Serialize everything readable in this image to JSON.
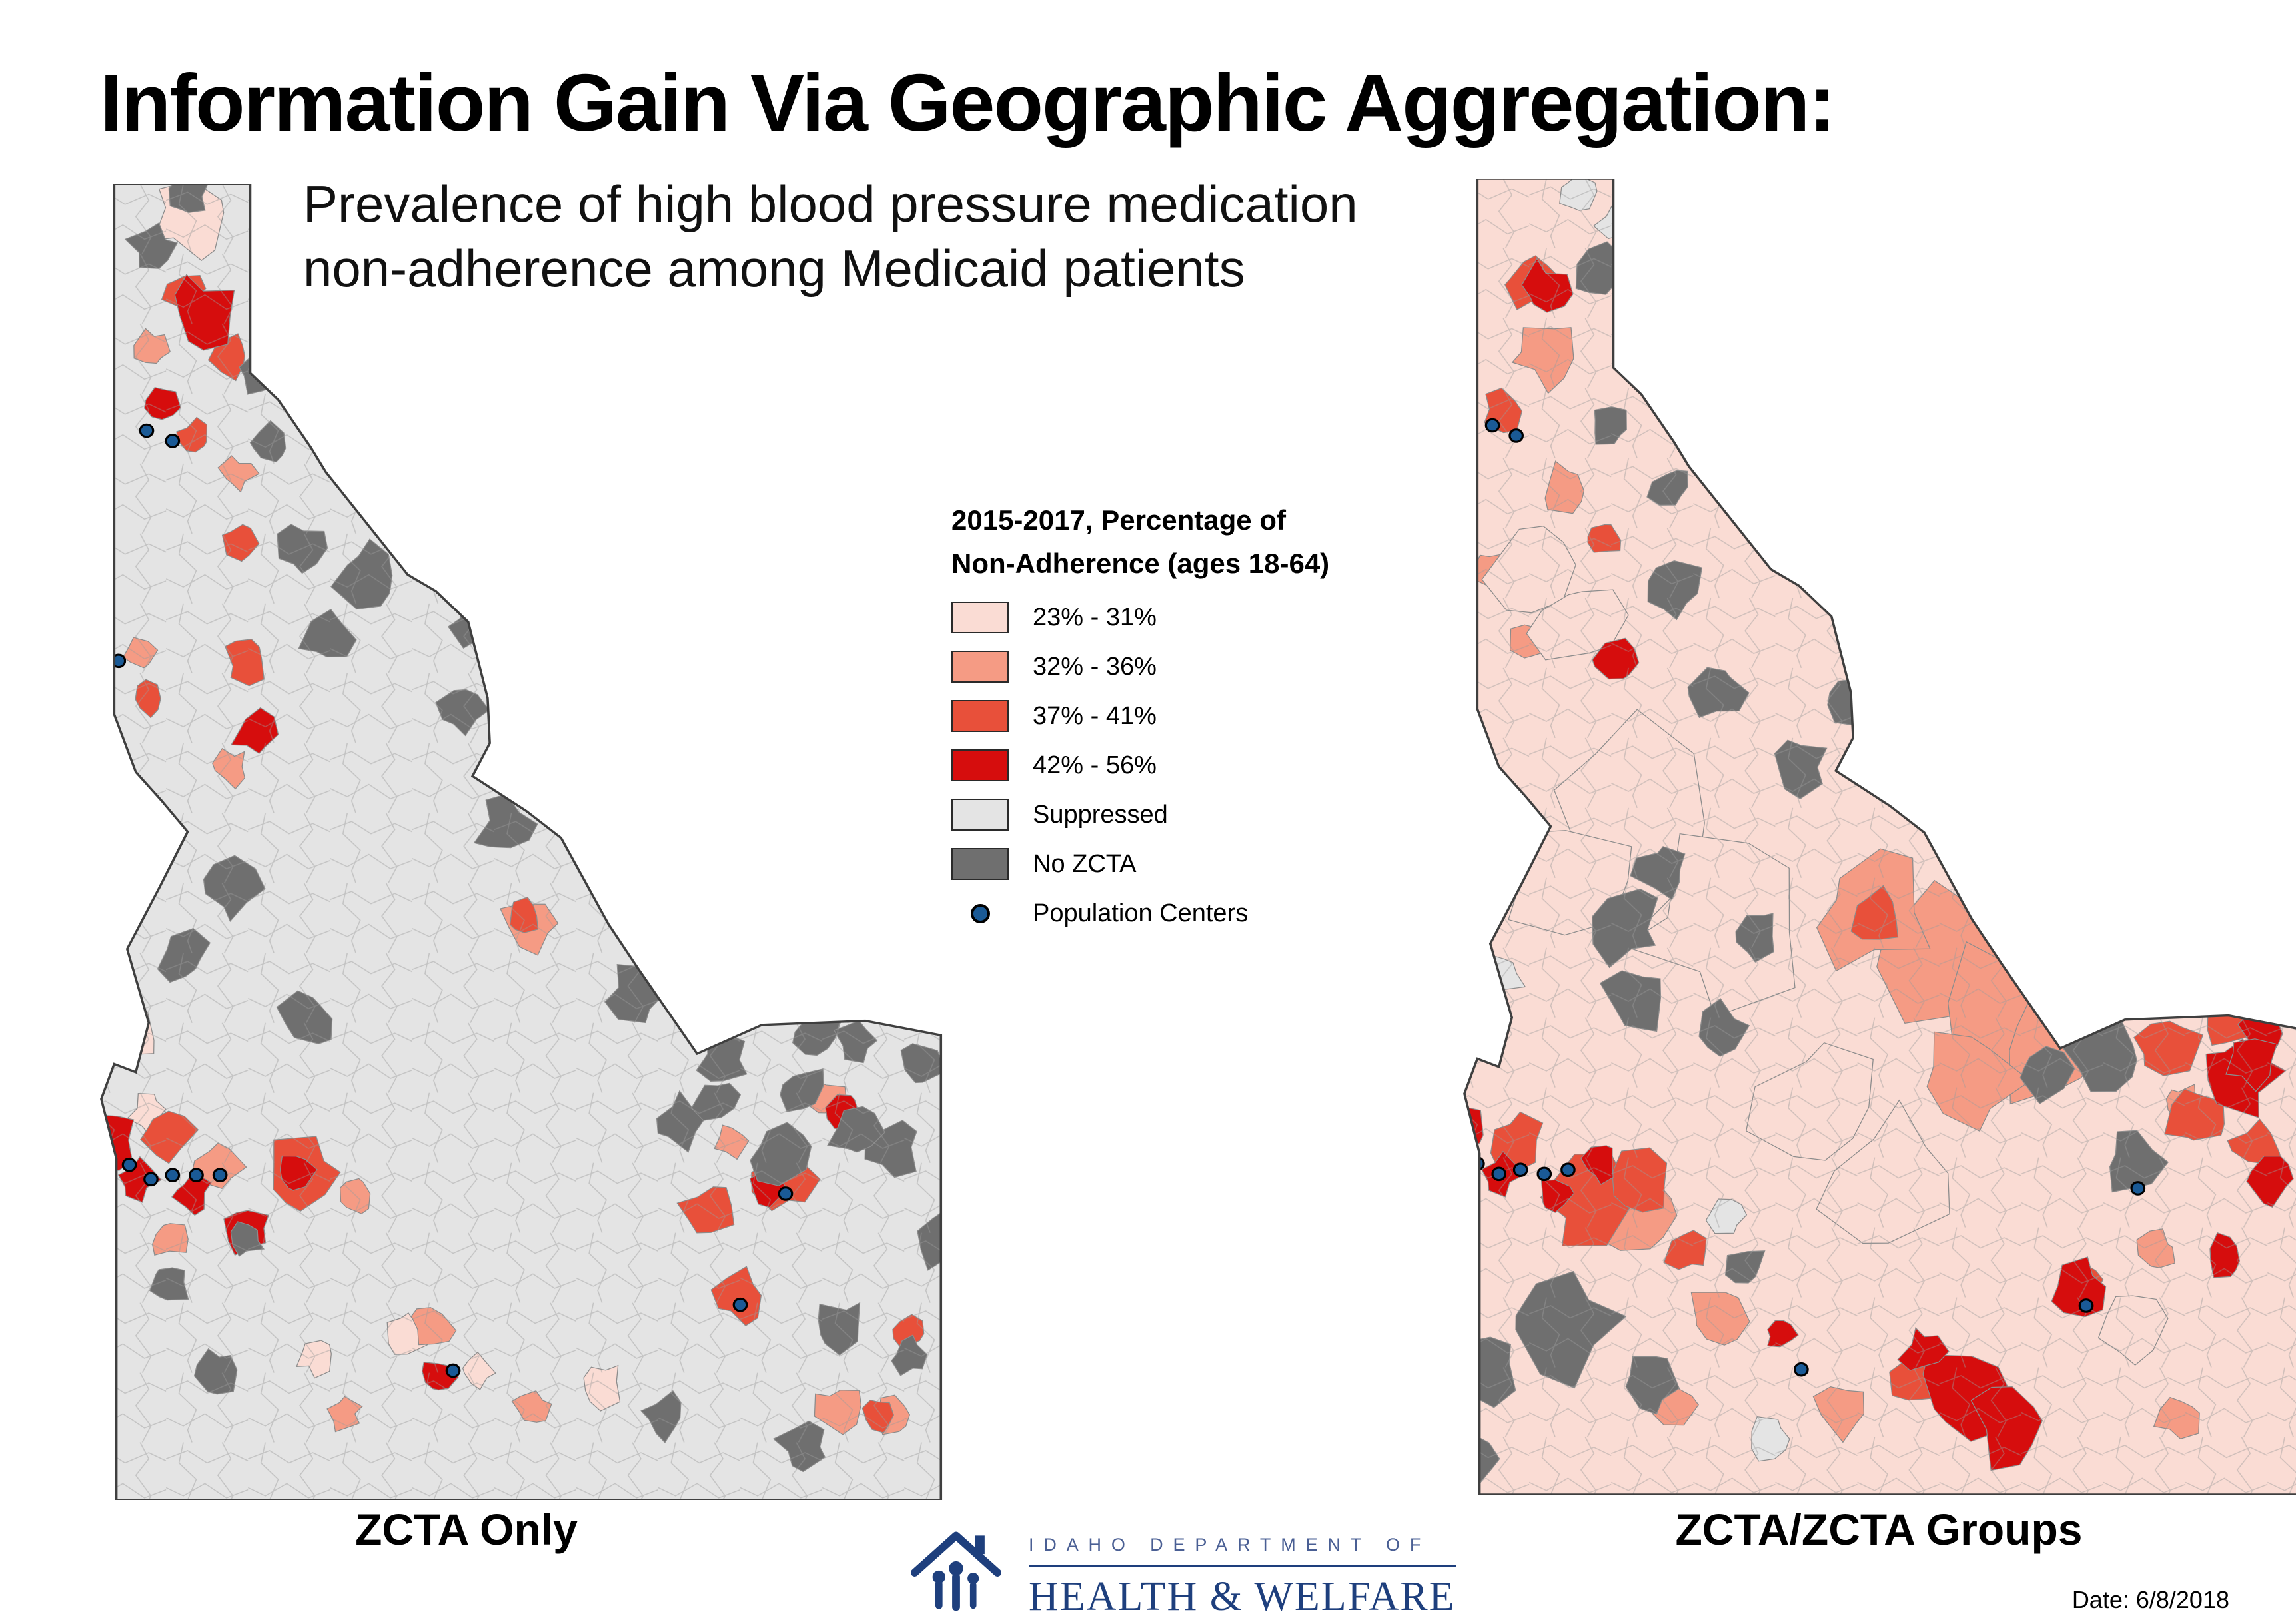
{
  "title": "Information Gain Via Geographic Aggregation:",
  "subtitle_line1": "Prevalence of high blood pressure medication",
  "subtitle_line2": "non-adherence among Medicaid patients",
  "legend": {
    "title_line1": "2015-2017, Percentage of",
    "title_line2": "Non-Adherence (ages 18-64)",
    "items": [
      {
        "label": "23% - 31%",
        "key": "cat1",
        "color": "#fadcd4"
      },
      {
        "label": "32% - 36%",
        "key": "cat2",
        "color": "#f59b84"
      },
      {
        "label": "37% - 41%",
        "key": "cat3",
        "color": "#e8503a"
      },
      {
        "label": "42% - 56%",
        "key": "cat4",
        "color": "#d60d0d"
      },
      {
        "label": "Suppressed",
        "key": "suppressed",
        "color": "#e4e4e4"
      },
      {
        "label": "No ZCTA",
        "key": "no_zcta",
        "color": "#6f6f6f"
      }
    ],
    "point_item": {
      "label": "Population Centers",
      "color": "#1a5a96"
    }
  },
  "maps": {
    "outline_color": "#3f3f3f",
    "left": {
      "label": "ZCTA Only",
      "base": "suppressed",
      "patches": [
        [
          "cat1",
          48,
          18,
          16
        ],
        [
          "cat1",
          18,
          413,
          14
        ],
        [
          "cat1",
          29,
          452,
          8
        ],
        [
          "cat1",
          107,
          570,
          8
        ],
        [
          "cat1",
          150,
          559,
          9
        ],
        [
          "cat1",
          182,
          577,
          7
        ],
        [
          "cat1",
          239,
          584,
          11
        ],
        [
          "cat2",
          32,
          80,
          8
        ],
        [
          "cat2",
          71,
          141,
          8
        ],
        [
          "cat2",
          25,
          227,
          7
        ],
        [
          "cat2",
          68,
          284,
          8
        ],
        [
          "cat2",
          207,
          359,
          12
        ],
        [
          "cat2",
          61,
          477,
          11
        ],
        [
          "cat2",
          125,
          491,
          9
        ],
        [
          "cat2",
          39,
          513,
          8
        ],
        [
          "cat2",
          300,
          466,
          8
        ],
        [
          "cat2",
          343,
          445,
          9
        ],
        [
          "cat2",
          161,
          556,
          10
        ],
        [
          "cat2",
          121,
          599,
          7
        ],
        [
          "cat2",
          207,
          595,
          8
        ],
        [
          "cat2",
          350,
          595,
          10
        ],
        [
          "cat2",
          375,
          599,
          8
        ],
        [
          "cat3",
          46,
          52,
          9
        ],
        [
          "cat3",
          68,
          84,
          9
        ],
        [
          "cat3",
          71,
          174,
          9
        ],
        [
          "cat3",
          50,
          124,
          9
        ],
        [
          "cat3",
          75,
          231,
          10
        ],
        [
          "cat3",
          29,
          249,
          8
        ],
        [
          "cat3",
          100,
          484,
          20
        ],
        [
          "cat3",
          39,
          463,
          12
        ],
        [
          "cat3",
          204,
          356,
          7
        ],
        [
          "cat3",
          289,
          499,
          12
        ],
        [
          "cat3",
          325,
          484,
          13
        ],
        [
          "cat3",
          304,
          541,
          11
        ],
        [
          "cat3",
          368,
          599,
          8
        ],
        [
          "cat3",
          382,
          559,
          7
        ],
        [
          "cat4",
          55,
          62,
          15
        ],
        [
          "cat4",
          36,
          108,
          8
        ],
        [
          "cat4",
          79,
          268,
          10
        ],
        [
          "cat4",
          14,
          466,
          11
        ],
        [
          "cat4",
          25,
          484,
          9
        ],
        [
          "cat4",
          50,
          491,
          8
        ],
        [
          "cat4",
          75,
          509,
          10
        ],
        [
          "cat4",
          97,
          481,
          9
        ],
        [
          "cat4",
          164,
          581,
          8
        ],
        [
          "cat4",
          317,
          489,
          9
        ],
        [
          "cat4",
          352,
          452,
          8
        ],
        [
          "no_zcta",
          48,
          6,
          9
        ],
        [
          "no_zcta",
          32,
          31,
          11
        ],
        [
          "no_zcta",
          82,
          91,
          10
        ],
        [
          "no_zcta",
          86,
          127,
          9
        ],
        [
          "no_zcta",
          100,
          177,
          12
        ],
        [
          "no_zcta",
          132,
          191,
          15
        ],
        [
          "no_zcta",
          111,
          220,
          12
        ],
        [
          "no_zcta",
          182,
          213,
          13
        ],
        [
          "no_zcta",
          175,
          256,
          11
        ],
        [
          "no_zcta",
          196,
          313,
          13
        ],
        [
          "no_zcta",
          68,
          341,
          13
        ],
        [
          "no_zcta",
          46,
          377,
          12
        ],
        [
          "no_zcta",
          104,
          406,
          13
        ],
        [
          "no_zcta",
          255,
          395,
          13
        ],
        [
          "no_zcta",
          338,
          415,
          12
        ],
        [
          "no_zcta",
          358,
          416,
          10
        ],
        [
          "no_zcta",
          389,
          427,
          10
        ],
        [
          "no_zcta",
          332,
          441,
          12
        ],
        [
          "no_zcta",
          275,
          456,
          12
        ],
        [
          "no_zcta",
          375,
          470,
          12
        ],
        [
          "no_zcta",
          321,
          470,
          13
        ],
        [
          "no_zcta",
          357,
          463,
          11
        ],
        [
          "no_zcta",
          293,
          445,
          10
        ],
        [
          "no_zcta",
          396,
          513,
          12
        ],
        [
          "no_zcta",
          350,
          556,
          12
        ],
        [
          "no_zcta",
          382,
          570,
          9
        ],
        [
          "no_zcta",
          75,
          513,
          9
        ],
        [
          "no_zcta",
          39,
          534,
          10
        ],
        [
          "no_zcta",
          61,
          577,
          10
        ],
        [
          "no_zcta",
          268,
          599,
          10
        ],
        [
          "no_zcta",
          332,
          613,
          10
        ],
        [
          "no_zcta",
          296,
          425,
          12
        ]
      ],
      "pop_centers": [
        [
          29,
          120
        ],
        [
          41,
          125
        ],
        [
          16,
          232
        ],
        [
          21,
          477
        ],
        [
          31,
          484
        ],
        [
          41,
          482
        ],
        [
          52,
          482
        ],
        [
          63,
          482
        ],
        [
          171,
          577
        ],
        [
          325,
          491
        ],
        [
          304,
          545
        ]
      ]
    },
    "right": {
      "label": "ZCTA/ZCTA Groups",
      "base": "cat1",
      "patches": [
        [
          "suppressed",
          60,
          8,
          8
        ],
        [
          "suppressed",
          80,
          20,
          10
        ],
        [
          "suppressed",
          25,
          386,
          10
        ],
        [
          "suppressed",
          130,
          505,
          9
        ],
        [
          "suppressed",
          150,
          612,
          10
        ],
        [
          "cat2",
          46,
          86,
          14
        ],
        [
          "cat2",
          54,
          150,
          11
        ],
        [
          "cat2",
          18,
          189,
          8
        ],
        [
          "cat2",
          39,
          225,
          10
        ],
        [
          "cat2",
          225,
          379,
          40
        ],
        [
          "cat2",
          254,
          414,
          34
        ],
        [
          "cat2",
          196,
          357,
          26
        ],
        [
          "cat2",
          278,
          420,
          26
        ],
        [
          "cat2",
          239,
          439,
          24
        ],
        [
          "cat2",
          89,
          507,
          18
        ],
        [
          "cat2",
          125,
          556,
          14
        ],
        [
          "cat2",
          107,
          597,
          10
        ],
        [
          "cat2",
          182,
          599,
          13
        ],
        [
          "cat2",
          329,
          521,
          9
        ],
        [
          "cat2",
          339,
          450,
          9
        ],
        [
          "cat2",
          339,
          602,
          10
        ],
        [
          "cat1",
          39,
          186,
          22
        ],
        [
          "cat1",
          61,
          214,
          20
        ],
        [
          "cat1",
          89,
          307,
          42
        ],
        [
          "cat1",
          125,
          364,
          36
        ],
        [
          "cat1",
          54,
          343,
          28
        ],
        [
          "cat1",
          175,
          450,
          32
        ],
        [
          "cat1",
          204,
          486,
          28
        ],
        [
          "cat1",
          318,
          557,
          16
        ],
        [
          "cat3",
          25,
          114,
          9
        ],
        [
          "cat3",
          39,
          50,
          12
        ],
        [
          "cat3",
          71,
          175,
          9
        ],
        [
          "cat3",
          200,
          359,
          12
        ],
        [
          "cat3",
          32,
          468,
          12
        ],
        [
          "cat3",
          68,
          500,
          22
        ],
        [
          "cat3",
          89,
          491,
          16
        ],
        [
          "cat3",
          111,
          521,
          10
        ],
        [
          "cat3",
          332,
          420,
          16
        ],
        [
          "cat3",
          361,
          410,
          10
        ],
        [
          "cat3",
          375,
          471,
          12
        ],
        [
          "cat3",
          346,
          457,
          12
        ],
        [
          "cat3",
          296,
          536,
          10
        ],
        [
          "cat3",
          218,
          586,
          12
        ],
        [
          "cat4",
          46,
          54,
          12
        ],
        [
          "cat4",
          79,
          236,
          12
        ],
        [
          "cat4",
          7,
          464,
          12
        ],
        [
          "cat4",
          25,
          484,
          9
        ],
        [
          "cat4",
          50,
          495,
          8
        ],
        [
          "cat4",
          71,
          479,
          9
        ],
        [
          "cat4",
          368,
          436,
          18
        ],
        [
          "cat4",
          379,
          415,
          12
        ],
        [
          "cat4",
          382,
          486,
          12
        ],
        [
          "cat4",
          361,
          525,
          10
        ],
        [
          "cat4",
          372,
          430,
          12
        ],
        [
          "cat4",
          239,
          591,
          22
        ],
        [
          "cat4",
          261,
          606,
          18
        ],
        [
          "cat4",
          221,
          570,
          10
        ],
        [
          "cat4",
          294,
          540,
          12
        ],
        [
          "cat4",
          154,
          561,
          8
        ],
        [
          "no_zcta",
          71,
          46,
          12
        ],
        [
          "no_zcta",
          104,
          150,
          10
        ],
        [
          "no_zcta",
          75,
          121,
          10
        ],
        [
          "no_zcta",
          104,
          200,
          14
        ],
        [
          "no_zcta",
          125,
          250,
          12
        ],
        [
          "no_zcta",
          164,
          286,
          12
        ],
        [
          "no_zcta",
          186,
          254,
          10
        ],
        [
          "no_zcta",
          100,
          336,
          12
        ],
        [
          "no_zcta",
          82,
          364,
          16
        ],
        [
          "no_zcta",
          86,
          400,
          14
        ],
        [
          "no_zcta",
          125,
          414,
          12
        ],
        [
          "no_zcta",
          143,
          368,
          10
        ],
        [
          "no_zcta",
          304,
          429,
          17
        ],
        [
          "no_zcta",
          275,
          434,
          13
        ],
        [
          "no_zcta",
          318,
          479,
          13
        ],
        [
          "no_zcta",
          350,
          373,
          12
        ],
        [
          "no_zcta",
          54,
          556,
          24
        ],
        [
          "no_zcta",
          18,
          577,
          16
        ],
        [
          "no_zcta",
          11,
          620,
          14
        ],
        [
          "no_zcta",
          93,
          586,
          12
        ],
        [
          "no_zcta",
          139,
          529,
          9
        ]
      ],
      "pop_centers": [
        [
          21,
          120
        ],
        [
          32,
          125
        ],
        [
          11,
          234
        ],
        [
          14,
          479
        ],
        [
          24,
          484
        ],
        [
          34,
          482
        ],
        [
          45,
          484
        ],
        [
          56,
          482
        ],
        [
          164,
          579
        ],
        [
          296,
          548
        ],
        [
          320,
          491
        ]
      ]
    }
  },
  "footer": {
    "logo_top": "IDAHO DEPARTMENT OF",
    "logo_main": "HEALTH & WELFARE",
    "logo_color": "#1e3f7d",
    "logo_top_color": "#4a5f94",
    "date": "Date: 6/8/2018"
  }
}
